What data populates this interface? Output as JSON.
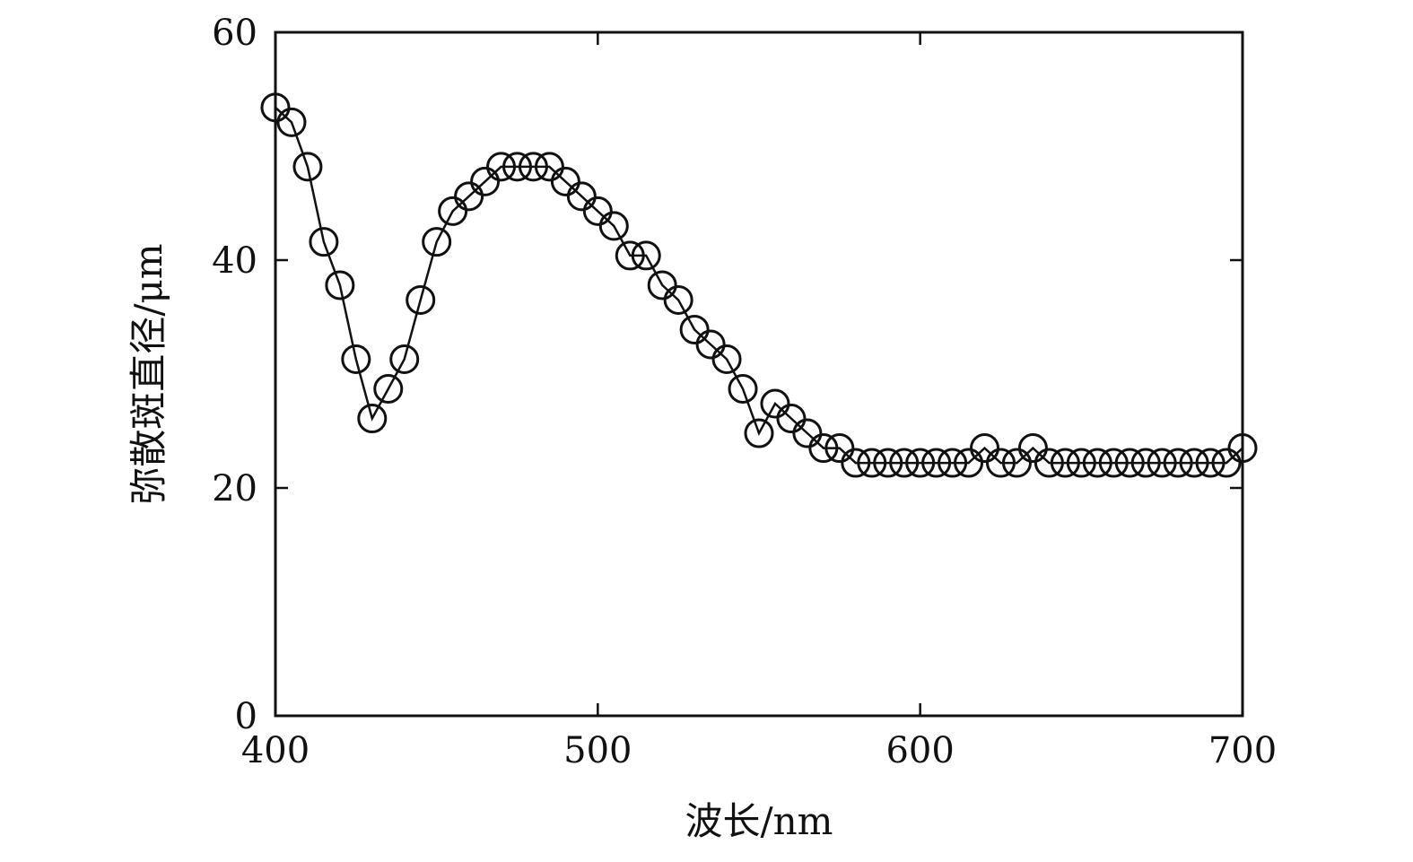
{
  "chart_data": {
    "type": "line",
    "xlabel": "波长/nm",
    "ylabel": "弥散斑直径/μm",
    "xlim": [
      400,
      700
    ],
    "ylim": [
      0,
      60
    ],
    "xticks": [
      "400",
      "500",
      "600",
      "700"
    ],
    "yticks": [
      "0",
      "20",
      "40",
      "60"
    ],
    "grid": false,
    "marker": "open-circle",
    "line_color": "#111111",
    "series": [
      {
        "x": [
          400,
          405,
          410,
          415,
          420,
          425,
          430,
          435,
          440,
          445,
          450,
          455,
          460,
          465,
          470,
          475,
          480,
          485,
          490,
          495,
          500,
          505,
          510,
          515,
          520,
          525,
          530,
          535,
          540,
          545,
          550,
          555,
          560,
          565,
          570,
          575,
          580,
          585,
          590,
          595,
          600,
          605,
          610,
          615,
          620,
          625,
          630,
          635,
          640,
          645,
          650,
          655,
          660,
          665,
          670,
          675,
          680,
          685,
          690,
          695,
          700
        ],
        "y": [
          53.4,
          52.1,
          48.2,
          41.6,
          37.8,
          31.3,
          26.1,
          28.7,
          31.3,
          36.5,
          41.6,
          44.3,
          45.6,
          46.9,
          48.2,
          48.2,
          48.2,
          48.2,
          46.9,
          45.6,
          44.3,
          43.0,
          40.4,
          40.4,
          37.8,
          36.5,
          33.9,
          32.6,
          31.3,
          28.7,
          24.8,
          27.4,
          26.1,
          24.8,
          23.5,
          23.5,
          22.2,
          22.2,
          22.2,
          22.2,
          22.2,
          22.2,
          22.2,
          22.2,
          23.5,
          22.2,
          22.2,
          23.5,
          22.2,
          22.2,
          22.2,
          22.2,
          22.2,
          22.2,
          22.2,
          22.2,
          22.2,
          22.2,
          22.2,
          22.2,
          23.5
        ]
      }
    ]
  }
}
